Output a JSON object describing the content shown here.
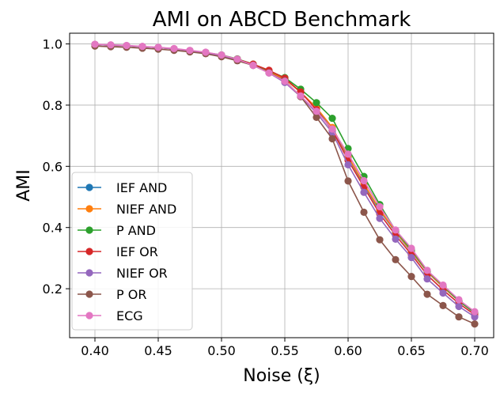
{
  "chart_data": {
    "type": "line",
    "title": "AMI on ABCD Benchmark",
    "xlabel": "Noise (ξ)",
    "ylabel": "AMI",
    "xlim": [
      0.38,
      0.715
    ],
    "ylim": [
      0.04,
      1.035
    ],
    "xticks": [
      0.4,
      0.45,
      0.5,
      0.55,
      0.6,
      0.65,
      0.7
    ],
    "xtick_labels": [
      "0.40",
      "0.45",
      "0.50",
      "0.55",
      "0.60",
      "0.65",
      "0.70"
    ],
    "yticks": [
      0.2,
      0.4,
      0.6,
      0.8,
      1.0
    ],
    "ytick_labels": [
      "0.2",
      "0.4",
      "0.6",
      "0.8",
      "1.0"
    ],
    "grid": true,
    "legend_position": "lower-left",
    "x": [
      0.4,
      0.4125,
      0.425,
      0.4375,
      0.45,
      0.4625,
      0.475,
      0.4875,
      0.5,
      0.5125,
      0.525,
      0.5375,
      0.55,
      0.5625,
      0.575,
      0.5875,
      0.6,
      0.6125,
      0.625,
      0.6375,
      0.65,
      0.6625,
      0.675,
      0.6875,
      0.7
    ],
    "series": [
      {
        "name": "IEF AND",
        "color": "#1f77b4",
        "values": [
          0.998,
          0.996,
          0.994,
          0.991,
          0.988,
          0.984,
          0.978,
          0.972,
          0.963,
          0.95,
          0.932,
          0.91,
          0.885,
          0.842,
          0.79,
          0.725,
          0.63,
          0.54,
          0.455,
          0.385,
          0.32,
          0.255,
          0.205,
          0.16,
          0.12
        ]
      },
      {
        "name": "NIEF AND",
        "color": "#ff7f0e",
        "values": [
          0.998,
          0.996,
          0.994,
          0.991,
          0.988,
          0.984,
          0.978,
          0.972,
          0.963,
          0.95,
          0.932,
          0.91,
          0.885,
          0.842,
          0.792,
          0.727,
          0.632,
          0.543,
          0.458,
          0.387,
          0.322,
          0.256,
          0.206,
          0.16,
          0.121
        ]
      },
      {
        "name": "P AND",
        "color": "#2ca02c",
        "values": [
          0.998,
          0.996,
          0.994,
          0.991,
          0.988,
          0.984,
          0.978,
          0.972,
          0.964,
          0.951,
          0.934,
          0.912,
          0.89,
          0.852,
          0.808,
          0.757,
          0.658,
          0.567,
          0.475,
          0.39,
          0.327,
          0.258,
          0.21,
          0.16,
          0.122
        ]
      },
      {
        "name": "IEF OR",
        "color": "#d62728",
        "values": [
          0.998,
          0.996,
          0.994,
          0.991,
          0.988,
          0.984,
          0.978,
          0.972,
          0.963,
          0.95,
          0.934,
          0.914,
          0.888,
          0.843,
          0.785,
          0.718,
          0.62,
          0.532,
          0.445,
          0.375,
          0.312,
          0.245,
          0.196,
          0.152,
          0.115
        ]
      },
      {
        "name": "NIEF OR",
        "color": "#9467bd",
        "values": [
          0.998,
          0.996,
          0.994,
          0.991,
          0.988,
          0.984,
          0.978,
          0.971,
          0.962,
          0.948,
          0.93,
          0.905,
          0.874,
          0.828,
          0.775,
          0.71,
          0.605,
          0.515,
          0.43,
          0.362,
          0.302,
          0.232,
          0.186,
          0.142,
          0.108
        ]
      },
      {
        "name": "P OR",
        "color": "#8c564b",
        "values": [
          0.993,
          0.991,
          0.989,
          0.986,
          0.983,
          0.979,
          0.974,
          0.968,
          0.958,
          0.945,
          0.93,
          0.906,
          0.88,
          0.828,
          0.76,
          0.69,
          0.552,
          0.45,
          0.36,
          0.295,
          0.24,
          0.182,
          0.145,
          0.108,
          0.085
        ]
      },
      {
        "name": "ECG",
        "color": "#e377c2",
        "values": [
          0.999,
          0.997,
          0.995,
          0.992,
          0.989,
          0.985,
          0.979,
          0.973,
          0.964,
          0.95,
          0.93,
          0.905,
          0.878,
          0.83,
          0.78,
          0.722,
          0.64,
          0.553,
          0.468,
          0.392,
          0.332,
          0.26,
          0.212,
          0.164,
          0.125
        ]
      }
    ]
  }
}
